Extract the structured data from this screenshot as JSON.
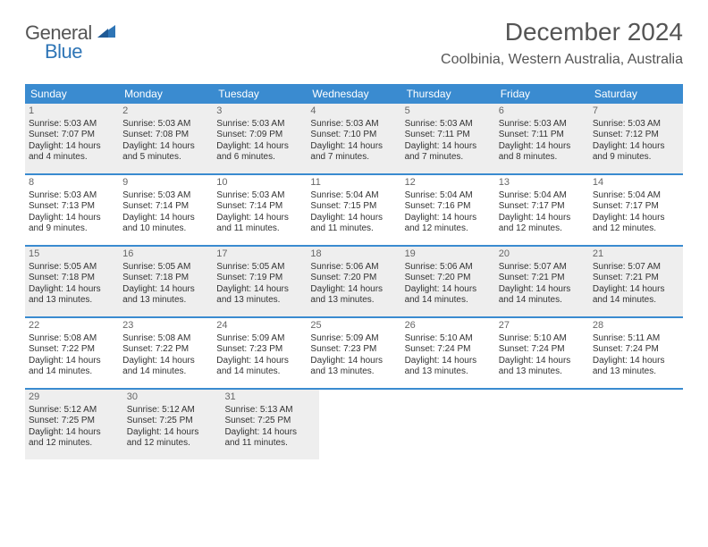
{
  "logo": {
    "general": "General",
    "blue": "Blue"
  },
  "title": "December 2024",
  "location": "Coolbinia, Western Australia, Australia",
  "colors": {
    "header_bg": "#3a8bd0",
    "header_text": "#ffffff",
    "shade": "#eeeeee",
    "rule": "#3a8bd0",
    "logo_blue": "#2e75b6",
    "text_gray": "#555555"
  },
  "day_headers": [
    "Sunday",
    "Monday",
    "Tuesday",
    "Wednesday",
    "Thursday",
    "Friday",
    "Saturday"
  ],
  "weeks": [
    {
      "shaded": true,
      "days": [
        {
          "num": "1",
          "sunrise": "Sunrise: 5:03 AM",
          "sunset": "Sunset: 7:07 PM",
          "d1": "Daylight: 14 hours",
          "d2": "and 4 minutes."
        },
        {
          "num": "2",
          "sunrise": "Sunrise: 5:03 AM",
          "sunset": "Sunset: 7:08 PM",
          "d1": "Daylight: 14 hours",
          "d2": "and 5 minutes."
        },
        {
          "num": "3",
          "sunrise": "Sunrise: 5:03 AM",
          "sunset": "Sunset: 7:09 PM",
          "d1": "Daylight: 14 hours",
          "d2": "and 6 minutes."
        },
        {
          "num": "4",
          "sunrise": "Sunrise: 5:03 AM",
          "sunset": "Sunset: 7:10 PM",
          "d1": "Daylight: 14 hours",
          "d2": "and 7 minutes."
        },
        {
          "num": "5",
          "sunrise": "Sunrise: 5:03 AM",
          "sunset": "Sunset: 7:11 PM",
          "d1": "Daylight: 14 hours",
          "d2": "and 7 minutes."
        },
        {
          "num": "6",
          "sunrise": "Sunrise: 5:03 AM",
          "sunset": "Sunset: 7:11 PM",
          "d1": "Daylight: 14 hours",
          "d2": "and 8 minutes."
        },
        {
          "num": "7",
          "sunrise": "Sunrise: 5:03 AM",
          "sunset": "Sunset: 7:12 PM",
          "d1": "Daylight: 14 hours",
          "d2": "and 9 minutes."
        }
      ]
    },
    {
      "shaded": false,
      "days": [
        {
          "num": "8",
          "sunrise": "Sunrise: 5:03 AM",
          "sunset": "Sunset: 7:13 PM",
          "d1": "Daylight: 14 hours",
          "d2": "and 9 minutes."
        },
        {
          "num": "9",
          "sunrise": "Sunrise: 5:03 AM",
          "sunset": "Sunset: 7:14 PM",
          "d1": "Daylight: 14 hours",
          "d2": "and 10 minutes."
        },
        {
          "num": "10",
          "sunrise": "Sunrise: 5:03 AM",
          "sunset": "Sunset: 7:14 PM",
          "d1": "Daylight: 14 hours",
          "d2": "and 11 minutes."
        },
        {
          "num": "11",
          "sunrise": "Sunrise: 5:04 AM",
          "sunset": "Sunset: 7:15 PM",
          "d1": "Daylight: 14 hours",
          "d2": "and 11 minutes."
        },
        {
          "num": "12",
          "sunrise": "Sunrise: 5:04 AM",
          "sunset": "Sunset: 7:16 PM",
          "d1": "Daylight: 14 hours",
          "d2": "and 12 minutes."
        },
        {
          "num": "13",
          "sunrise": "Sunrise: 5:04 AM",
          "sunset": "Sunset: 7:17 PM",
          "d1": "Daylight: 14 hours",
          "d2": "and 12 minutes."
        },
        {
          "num": "14",
          "sunrise": "Sunrise: 5:04 AM",
          "sunset": "Sunset: 7:17 PM",
          "d1": "Daylight: 14 hours",
          "d2": "and 12 minutes."
        }
      ]
    },
    {
      "shaded": true,
      "days": [
        {
          "num": "15",
          "sunrise": "Sunrise: 5:05 AM",
          "sunset": "Sunset: 7:18 PM",
          "d1": "Daylight: 14 hours",
          "d2": "and 13 minutes."
        },
        {
          "num": "16",
          "sunrise": "Sunrise: 5:05 AM",
          "sunset": "Sunset: 7:18 PM",
          "d1": "Daylight: 14 hours",
          "d2": "and 13 minutes."
        },
        {
          "num": "17",
          "sunrise": "Sunrise: 5:05 AM",
          "sunset": "Sunset: 7:19 PM",
          "d1": "Daylight: 14 hours",
          "d2": "and 13 minutes."
        },
        {
          "num": "18",
          "sunrise": "Sunrise: 5:06 AM",
          "sunset": "Sunset: 7:20 PM",
          "d1": "Daylight: 14 hours",
          "d2": "and 13 minutes."
        },
        {
          "num": "19",
          "sunrise": "Sunrise: 5:06 AM",
          "sunset": "Sunset: 7:20 PM",
          "d1": "Daylight: 14 hours",
          "d2": "and 14 minutes."
        },
        {
          "num": "20",
          "sunrise": "Sunrise: 5:07 AM",
          "sunset": "Sunset: 7:21 PM",
          "d1": "Daylight: 14 hours",
          "d2": "and 14 minutes."
        },
        {
          "num": "21",
          "sunrise": "Sunrise: 5:07 AM",
          "sunset": "Sunset: 7:21 PM",
          "d1": "Daylight: 14 hours",
          "d2": "and 14 minutes."
        }
      ]
    },
    {
      "shaded": false,
      "days": [
        {
          "num": "22",
          "sunrise": "Sunrise: 5:08 AM",
          "sunset": "Sunset: 7:22 PM",
          "d1": "Daylight: 14 hours",
          "d2": "and 14 minutes."
        },
        {
          "num": "23",
          "sunrise": "Sunrise: 5:08 AM",
          "sunset": "Sunset: 7:22 PM",
          "d1": "Daylight: 14 hours",
          "d2": "and 14 minutes."
        },
        {
          "num": "24",
          "sunrise": "Sunrise: 5:09 AM",
          "sunset": "Sunset: 7:23 PM",
          "d1": "Daylight: 14 hours",
          "d2": "and 14 minutes."
        },
        {
          "num": "25",
          "sunrise": "Sunrise: 5:09 AM",
          "sunset": "Sunset: 7:23 PM",
          "d1": "Daylight: 14 hours",
          "d2": "and 13 minutes."
        },
        {
          "num": "26",
          "sunrise": "Sunrise: 5:10 AM",
          "sunset": "Sunset: 7:24 PM",
          "d1": "Daylight: 14 hours",
          "d2": "and 13 minutes."
        },
        {
          "num": "27",
          "sunrise": "Sunrise: 5:10 AM",
          "sunset": "Sunset: 7:24 PM",
          "d1": "Daylight: 14 hours",
          "d2": "and 13 minutes."
        },
        {
          "num": "28",
          "sunrise": "Sunrise: 5:11 AM",
          "sunset": "Sunset: 7:24 PM",
          "d1": "Daylight: 14 hours",
          "d2": "and 13 minutes."
        }
      ]
    },
    {
      "shaded": true,
      "days": [
        {
          "num": "29",
          "sunrise": "Sunrise: 5:12 AM",
          "sunset": "Sunset: 7:25 PM",
          "d1": "Daylight: 14 hours",
          "d2": "and 12 minutes."
        },
        {
          "num": "30",
          "sunrise": "Sunrise: 5:12 AM",
          "sunset": "Sunset: 7:25 PM",
          "d1": "Daylight: 14 hours",
          "d2": "and 12 minutes."
        },
        {
          "num": "31",
          "sunrise": "Sunrise: 5:13 AM",
          "sunset": "Sunset: 7:25 PM",
          "d1": "Daylight: 14 hours",
          "d2": "and 11 minutes."
        }
      ],
      "trailing_empty": 4
    }
  ]
}
